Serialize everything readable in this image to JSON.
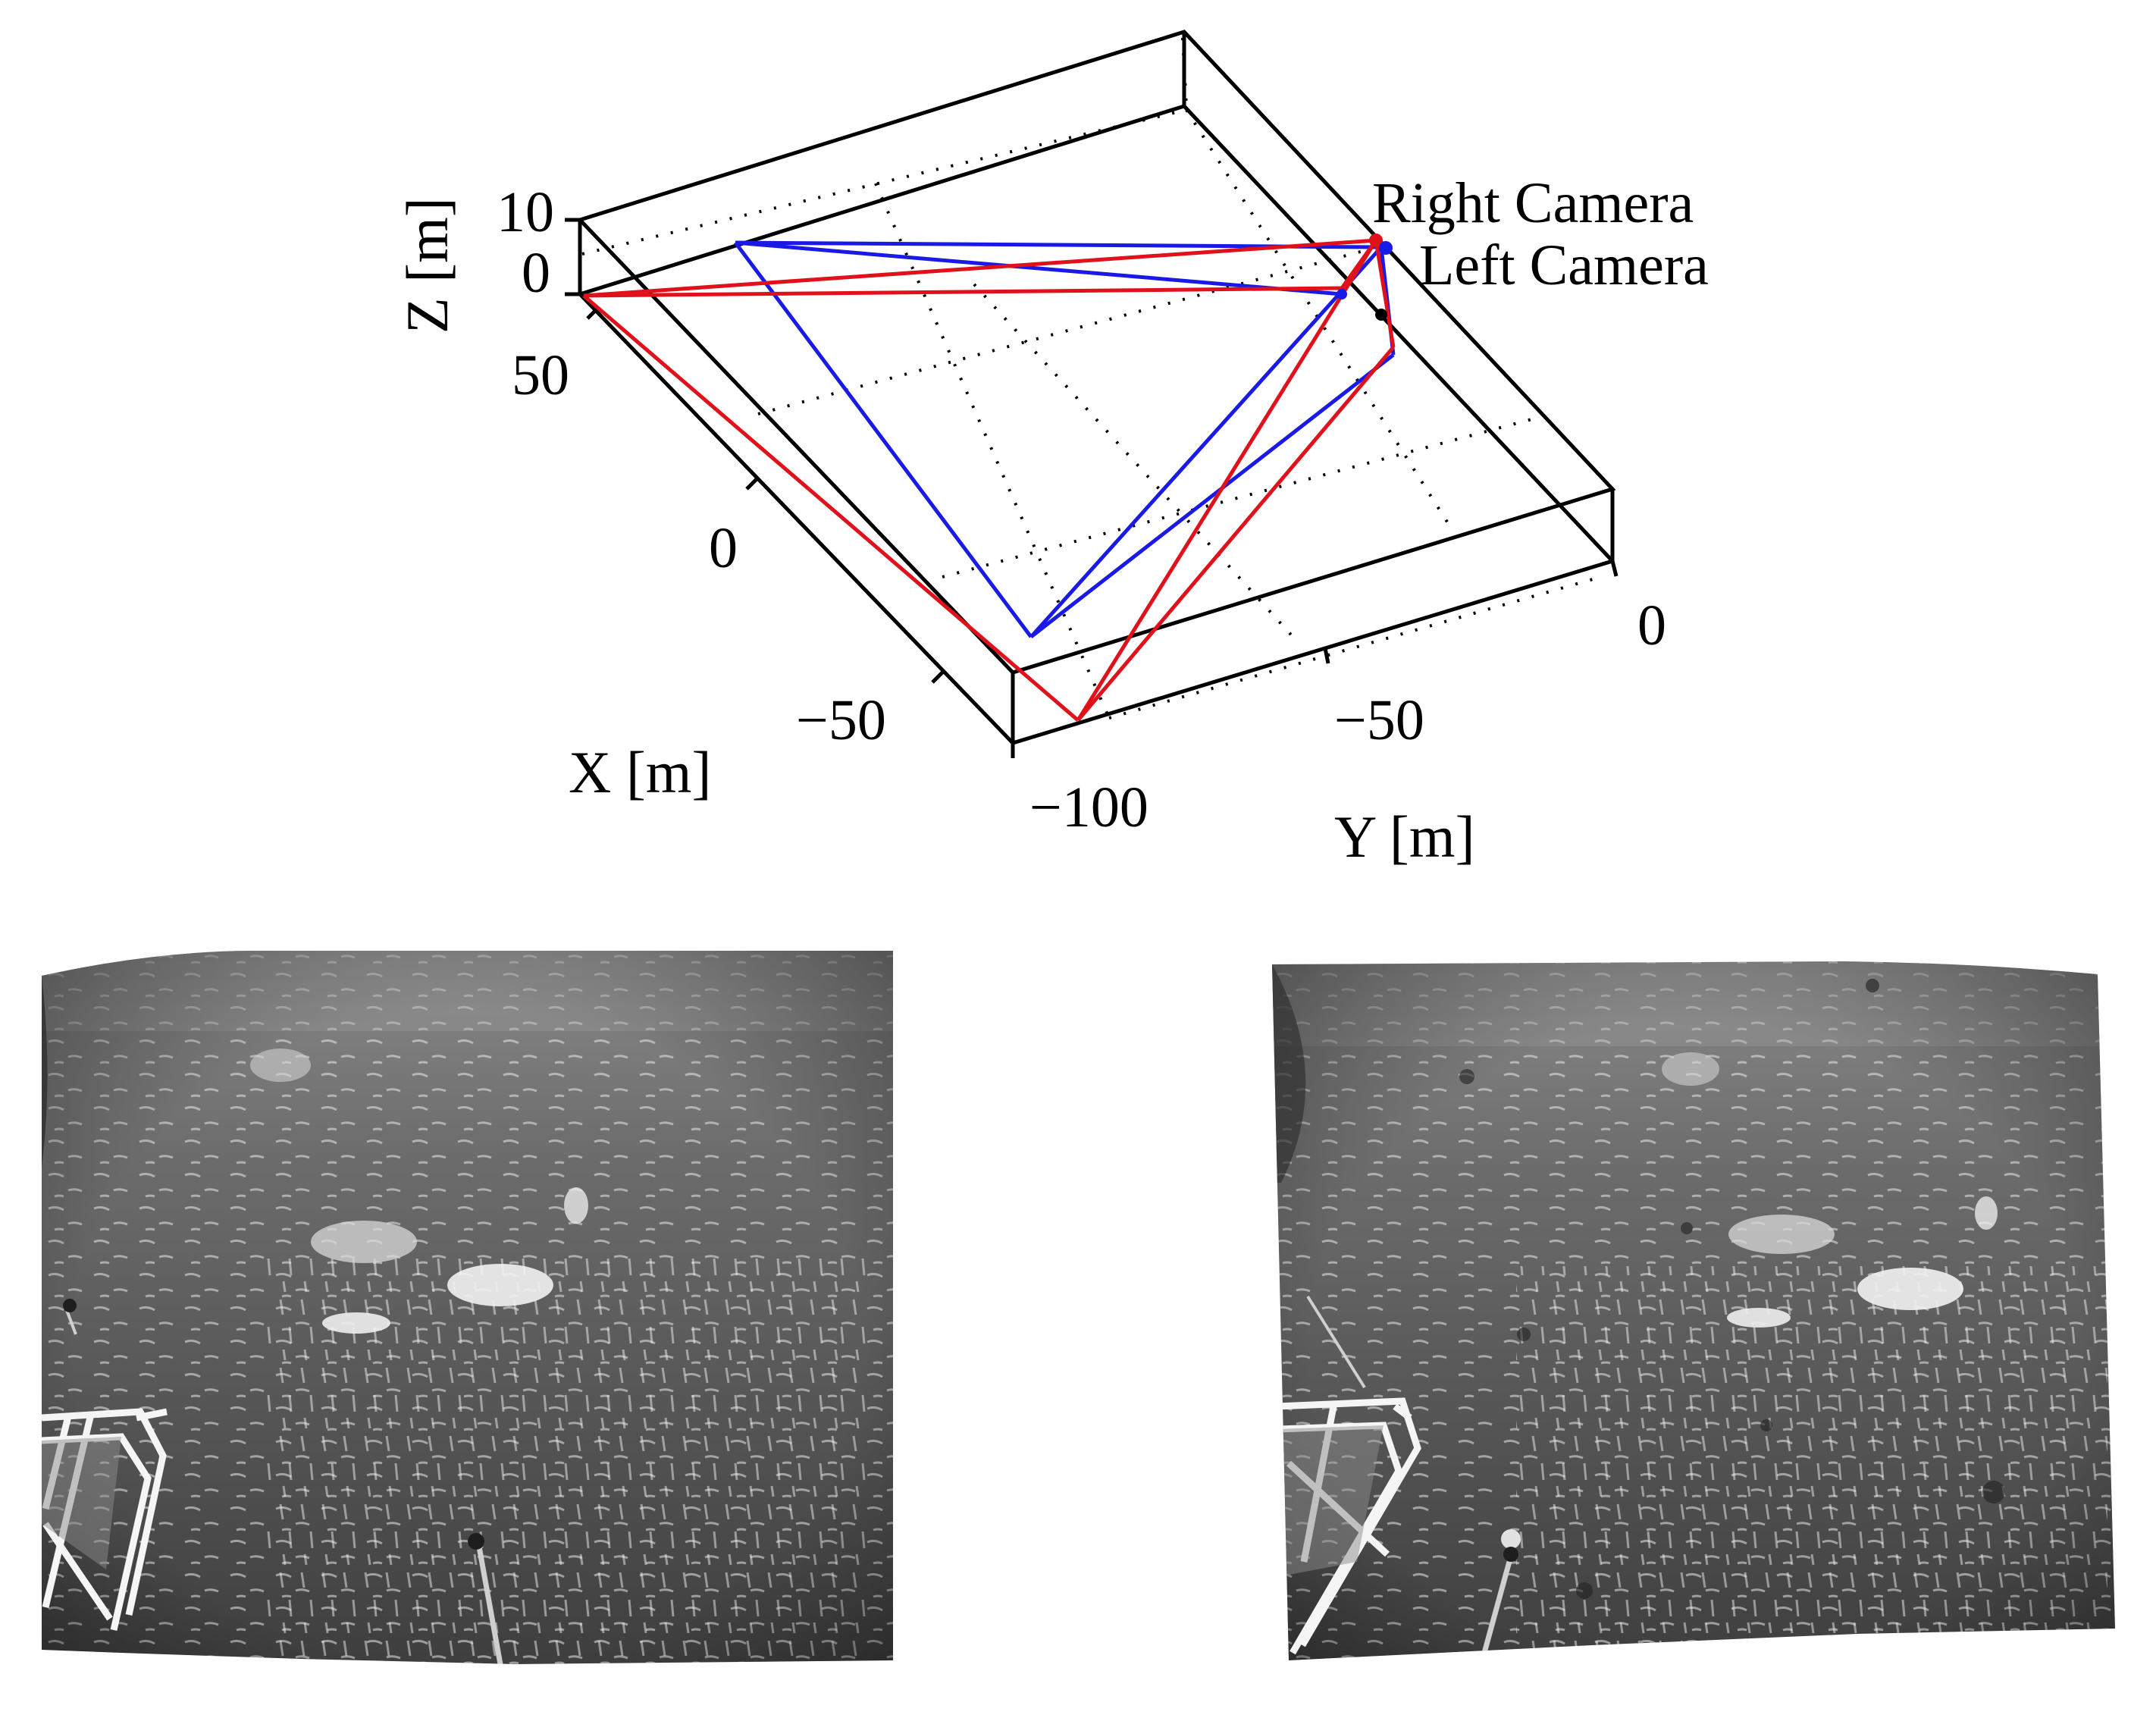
{
  "plot3d": {
    "z_axis": {
      "label": "Z [m]",
      "ticks": [
        "10",
        "0"
      ]
    },
    "x_axis": {
      "label": "X [m]",
      "ticks": [
        "50",
        "0",
        "−50"
      ]
    },
    "y_axis": {
      "label": "Y [m]",
      "ticks": [
        "0",
        "−50",
        "−100"
      ]
    },
    "cameras": [
      {
        "name": "Right Camera",
        "color": "#e0111b"
      },
      {
        "name": "Left Camera",
        "color": "#1a1ae6"
      }
    ],
    "frustum_colors": {
      "left": "#1a1ae6",
      "right": "#e0111b",
      "origin_marker": "#000000"
    }
  },
  "photos": [
    {
      "name": "left-camera-image",
      "subject": "sea surface with whitecaps, ship railing lower-left"
    },
    {
      "name": "right-camera-image",
      "subject": "sea surface with whitecaps, ship railing lower-left"
    }
  ]
}
